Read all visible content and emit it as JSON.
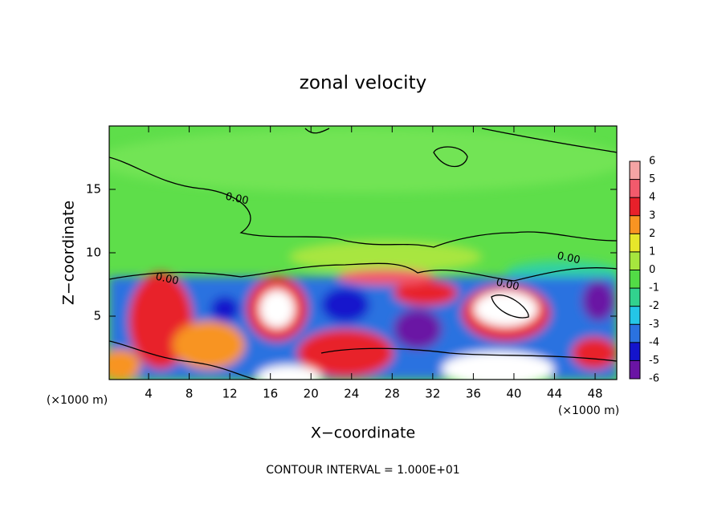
{
  "chart_data": {
    "type": "contour",
    "title": "zonal velocity",
    "xlabel": "X−coordinate",
    "ylabel": "Z−coordinate",
    "x_unit_left": "(×1000 m)",
    "x_unit_right": "(×1000 m)",
    "footnote": "CONTOUR INTERVAL = 1.000E+01",
    "xlim": [
      0,
      50
    ],
    "xticks": [
      4,
      8,
      12,
      16,
      20,
      24,
      28,
      32,
      36,
      40,
      44,
      48
    ],
    "ylim": [
      0,
      20
    ],
    "yticks": [
      5,
      10,
      15
    ],
    "contour_labels": [
      "0.00",
      "0.00",
      "0.00",
      "0.00"
    ],
    "colorbar": {
      "ticks": [
        6,
        5,
        4,
        3,
        2,
        1,
        0,
        -1,
        -2,
        -3,
        -4,
        -5,
        -6
      ],
      "colors": [
        "#f5a4a4",
        "#f25a6c",
        "#e8202a",
        "#f89422",
        "#e6e62a",
        "#a6e63e",
        "#52dc46",
        "#32d28e",
        "#24c6e6",
        "#2a72e0",
        "#1414cc",
        "#6a14a4"
      ]
    }
  }
}
